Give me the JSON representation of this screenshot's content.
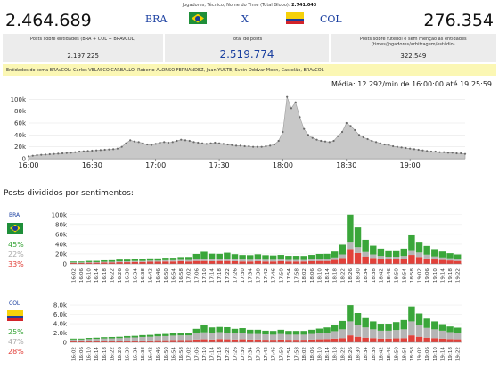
{
  "header": {
    "top_label": "Jogadores, Técnico, Nome do Time (Total Globo):",
    "top_value": "2.741.043",
    "left_total": "2.464.689",
    "right_total": "276.354",
    "team_left": "BRA",
    "versus": "X",
    "team_right": "COL"
  },
  "stats": [
    {
      "label": "Posts sobre entidades (BRA + COL + BRAvCOL)",
      "value": "2.197.225"
    },
    {
      "label": "Total de posts",
      "value": "2.519.774"
    },
    {
      "label": "Posts sobre futebol e sem menção as entidades (times/jogadores/arbitragem/estádio)",
      "value": "322.549"
    }
  ],
  "entities_line": "Entidades do tema BRAvCOL:  Carlos VELASCO CARBALLO, Roberto ALONSO FERNANDEZ, Juan YUSTE, Svein Oddvar Moen, Castelão, BRAvCOL",
  "media_label": "Média: 12.292/min de 16:00:00 até 19:25:59",
  "sentiment_title": "Posts divididos por sentimentos:",
  "bra_panel": {
    "code": "BRA",
    "positive": "45%",
    "neutral": "22%",
    "negative": "33%"
  },
  "col_panel": {
    "code": "COL",
    "positive": "25%",
    "neutral": "47%",
    "negative": "28%"
  },
  "colors": {
    "positive": "#3aa63a",
    "neutral": "#b5b5b5",
    "negative": "#e2413a",
    "area": "#c8c8c8",
    "accent": "#1a3fa0"
  },
  "chart_data": [
    {
      "type": "area",
      "x_ticks": [
        "16:00",
        "16:30",
        "17:00",
        "17:30",
        "18:00",
        "18:30",
        "19:00"
      ],
      "y_ticks": [
        "0",
        "20k",
        "40k",
        "60k",
        "80k",
        "100k"
      ],
      "ylim": [
        0,
        105000
      ],
      "xlim_minutes": [
        0,
        206
      ],
      "sample_step_minutes": 2,
      "values": [
        4000,
        5000,
        6000,
        6500,
        7000,
        7500,
        8000,
        8500,
        9000,
        9500,
        10000,
        11000,
        12000,
        12500,
        13000,
        13500,
        14000,
        14500,
        15000,
        15500,
        16000,
        17000,
        20000,
        26000,
        31000,
        29000,
        28000,
        26000,
        24000,
        23000,
        25000,
        27000,
        28000,
        27000,
        28000,
        30000,
        32000,
        31000,
        30000,
        28000,
        27000,
        26000,
        25000,
        26000,
        27000,
        26000,
        25000,
        24000,
        23000,
        22000,
        22000,
        21000,
        21000,
        20000,
        20000,
        20000,
        21000,
        22000,
        24000,
        30000,
        45000,
        104000,
        85000,
        95000,
        70000,
        50000,
        40000,
        35000,
        32000,
        30000,
        29000,
        28000,
        30000,
        38000,
        45000,
        60000,
        55000,
        48000,
        40000,
        36000,
        33000,
        30000,
        28000,
        26000,
        24000,
        23000,
        21000,
        20000,
        19000,
        18000,
        17000,
        16000,
        15000,
        14000,
        13000,
        12000,
        12000,
        11000,
        11000,
        10000,
        10000,
        9000,
        9000,
        8000
      ]
    },
    {
      "type": "bar",
      "stacked": true,
      "name": "BRA",
      "y_ticks": [
        "0",
        "20k",
        "40k",
        "60k",
        "80k",
        "100k"
      ],
      "ylim": [
        0,
        105000
      ],
      "categories": [
        "16:02",
        "16:06",
        "16:10",
        "16:14",
        "16:18",
        "16:22",
        "16:26",
        "16:30",
        "16:34",
        "16:38",
        "16:42",
        "16:46",
        "16:50",
        "16:54",
        "16:58",
        "17:02",
        "17:06",
        "17:10",
        "17:14",
        "17:18",
        "17:22",
        "17:26",
        "17:30",
        "17:34",
        "17:38",
        "17:42",
        "17:46",
        "17:50",
        "17:54",
        "17:58",
        "18:02",
        "18:06",
        "18:10",
        "18:14",
        "18:18",
        "18:22",
        "18:26",
        "18:30",
        "18:34",
        "18:38",
        "18:42",
        "18:46",
        "18:50",
        "18:54",
        "18:58",
        "19:02",
        "19:06",
        "19:10",
        "19:14",
        "19:18",
        "19:22"
      ],
      "series": [
        {
          "name": "negative",
          "values": [
            2000,
            2000,
            2500,
            2500,
            3000,
            3000,
            3500,
            3500,
            4000,
            4000,
            4500,
            4500,
            5000,
            5000,
            5500,
            5000,
            6000,
            6000,
            5500,
            6000,
            6000,
            5500,
            5000,
            5000,
            5500,
            5000,
            5000,
            5500,
            5000,
            5000,
            5000,
            5500,
            6000,
            6000,
            8000,
            12000,
            30000,
            22000,
            15000,
            12000,
            10000,
            9000,
            9000,
            10000,
            18000,
            14000,
            11000,
            9000,
            8000,
            7000,
            6000
          ]
        },
        {
          "name": "neutral",
          "values": [
            1000,
            1000,
            1200,
            1200,
            1500,
            1500,
            1800,
            1800,
            2000,
            2000,
            2200,
            2200,
            2500,
            2500,
            2800,
            3000,
            4000,
            4500,
            4000,
            4200,
            4500,
            4000,
            3800,
            3500,
            3800,
            3500,
            3400,
            3500,
            3200,
            3200,
            3000,
            3500,
            4000,
            4200,
            5000,
            7000,
            15000,
            12000,
            9000,
            7000,
            6000,
            5500,
            5500,
            6000,
            10000,
            9000,
            7500,
            6000,
            5000,
            4500,
            4000
          ]
        },
        {
          "name": "positive",
          "values": [
            2000,
            2000,
            2500,
            2500,
            2800,
            3000,
            3500,
            3500,
            4000,
            4000,
            4500,
            4500,
            5000,
            5000,
            5500,
            6000,
            10000,
            14000,
            11000,
            10000,
            12000,
            10000,
            9000,
            9000,
            10000,
            9000,
            8500,
            9000,
            8000,
            8000,
            8000,
            9000,
            10000,
            10000,
            12000,
            20000,
            55000,
            40000,
            25000,
            18000,
            15000,
            13000,
            13000,
            15000,
            30000,
            22000,
            18000,
            15000,
            12000,
            10000,
            9000
          ]
        }
      ]
    },
    {
      "type": "bar",
      "stacked": true,
      "name": "COL",
      "y_ticks": [
        "0",
        "2.0k",
        "4.0k",
        "6.0k",
        "8.0k"
      ],
      "ylim": [
        0,
        8400
      ],
      "categories": [
        "16:02",
        "16:06",
        "16:10",
        "16:14",
        "16:18",
        "16:22",
        "16:26",
        "16:30",
        "16:34",
        "16:38",
        "16:42",
        "16:46",
        "16:50",
        "16:54",
        "16:58",
        "17:02",
        "17:06",
        "17:10",
        "17:14",
        "17:18",
        "17:22",
        "17:26",
        "17:30",
        "17:34",
        "17:38",
        "17:42",
        "17:46",
        "17:50",
        "17:54",
        "17:58",
        "18:02",
        "18:06",
        "18:10",
        "18:14",
        "18:18",
        "18:22",
        "18:26",
        "18:30",
        "18:34",
        "18:38",
        "18:42",
        "18:46",
        "18:50",
        "18:54",
        "18:58",
        "19:02",
        "19:06",
        "19:10",
        "19:14",
        "19:18",
        "19:22"
      ],
      "series": [
        {
          "name": "negative",
          "values": [
            200,
            200,
            250,
            250,
            280,
            300,
            300,
            350,
            350,
            400,
            400,
            450,
            450,
            500,
            500,
            500,
            600,
            650,
            600,
            700,
            650,
            600,
            650,
            600,
            600,
            550,
            550,
            600,
            550,
            550,
            550,
            600,
            650,
            700,
            800,
            900,
            1500,
            1200,
            1000,
            900,
            800,
            800,
            850,
            900,
            1500,
            1200,
            1000,
            900,
            800,
            700,
            650
          ]
        },
        {
          "name": "neutral",
          "values": [
            400,
            400,
            450,
            500,
            550,
            550,
            600,
            650,
            700,
            750,
            800,
            850,
            900,
            950,
            1000,
            1000,
            1300,
            1500,
            1400,
            1500,
            1400,
            1300,
            1300,
            1200,
            1200,
            1150,
            1100,
            1200,
            1100,
            1100,
            1100,
            1200,
            1300,
            1400,
            1600,
            1900,
            3000,
            2500,
            2200,
            1900,
            1700,
            1700,
            1800,
            1900,
            3000,
            2500,
            2100,
            1900,
            1700,
            1500,
            1400
          ]
        },
        {
          "name": "positive",
          "values": [
            200,
            200,
            250,
            250,
            280,
            300,
            300,
            350,
            350,
            400,
            400,
            450,
            450,
            500,
            500,
            600,
            1000,
            1500,
            1200,
            1100,
            1200,
            1000,
            1100,
            900,
            900,
            800,
            800,
            900,
            800,
            800,
            800,
            900,
            1000,
            1100,
            1300,
            1800,
            3500,
            2600,
            2000,
            1700,
            1500,
            1500,
            1700,
            2000,
            3200,
            2500,
            2000,
            1700,
            1400,
            1200,
            1100
          ]
        }
      ]
    }
  ]
}
